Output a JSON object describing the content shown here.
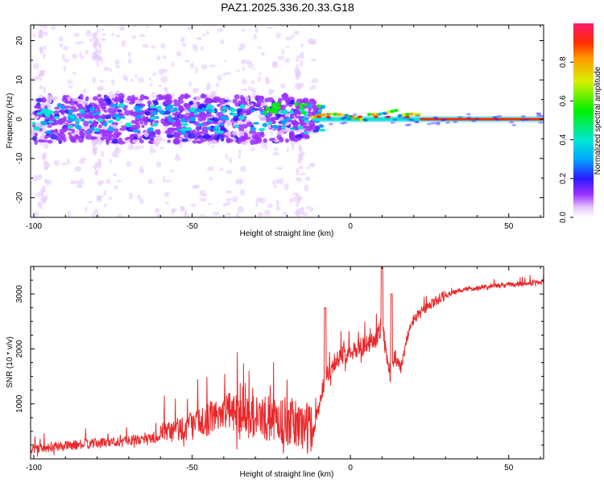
{
  "title": "PAZ1.2025.336.20.33.G18",
  "spectrogram": {
    "type": "heatmap",
    "xlabel": "Height of straight line (km)",
    "ylabel": "Frequency (Hz)",
    "xlim": [
      -101,
      61
    ],
    "ylim": [
      -25,
      24
    ],
    "xticks": [
      -100,
      -50,
      0,
      50
    ],
    "yticks": [
      -20,
      -10,
      0,
      10,
      20
    ],
    "line_frequency_hz": 0,
    "colorbar": {
      "label": "Normalized spectral amplitude",
      "ticks": [
        0.0,
        0.2,
        0.4,
        0.6,
        0.8
      ],
      "tick_labels": [
        "0.0",
        "0.2",
        "0.4",
        "0.6",
        "0.8"
      ],
      "range": [
        0,
        1
      ]
    }
  },
  "snr": {
    "type": "line",
    "xlabel": "Height of straight line (km)",
    "ylabel": "SNR (10 * v/v)",
    "xlim": [
      -101,
      61
    ],
    "ylim": [
      0,
      3500
    ],
    "xticks": [
      -100,
      -50,
      0,
      50
    ],
    "yticks": [
      1000,
      2000,
      3000
    ],
    "color": "#e8282a",
    "series": [
      {
        "x": -101,
        "y": 150
      },
      {
        "x": -90,
        "y": 200
      },
      {
        "x": -80,
        "y": 250
      },
      {
        "x": -70,
        "y": 300
      },
      {
        "x": -60,
        "y": 350
      },
      {
        "x": -50,
        "y": 500
      },
      {
        "x": -45,
        "y": 600
      },
      {
        "x": -40,
        "y": 750
      },
      {
        "x": -35,
        "y": 700
      },
      {
        "x": -30,
        "y": 600
      },
      {
        "x": -25,
        "y": 550
      },
      {
        "x": -20,
        "y": 500
      },
      {
        "x": -15,
        "y": 400
      },
      {
        "x": -12,
        "y": 350
      },
      {
        "x": -10,
        "y": 900
      },
      {
        "x": -8,
        "y": 1400
      },
      {
        "x": -5,
        "y": 1700
      },
      {
        "x": 0,
        "y": 1900
      },
      {
        "x": 5,
        "y": 2000
      },
      {
        "x": 8,
        "y": 2100
      },
      {
        "x": 10,
        "y": 2400
      },
      {
        "x": 12,
        "y": 1500
      },
      {
        "x": 14,
        "y": 1800
      },
      {
        "x": 16,
        "y": 1600
      },
      {
        "x": 18,
        "y": 2200
      },
      {
        "x": 20,
        "y": 2500
      },
      {
        "x": 25,
        "y": 2750
      },
      {
        "x": 30,
        "y": 2950
      },
      {
        "x": 35,
        "y": 3050
      },
      {
        "x": 40,
        "y": 3100
      },
      {
        "x": 50,
        "y": 3150
      },
      {
        "x": 61,
        "y": 3200
      }
    ]
  }
}
